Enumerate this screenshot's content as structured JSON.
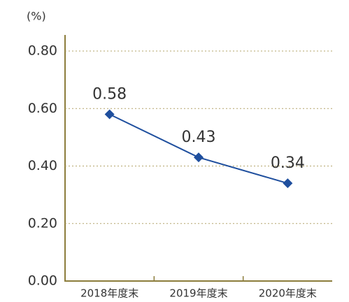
{
  "chart_data": {
    "type": "line",
    "y_label": "(%)",
    "categories": [
      "2018年度末",
      "2019年度末",
      "2020年度末"
    ],
    "series": [
      {
        "name": null,
        "color": "#1f4f9e",
        "values": [
          0.58,
          0.43,
          0.34
        ]
      }
    ],
    "ylim": [
      0,
      0.8
    ],
    "yticks": [
      {
        "value": 0,
        "label": "0.00"
      },
      {
        "value": 0.2,
        "label": "0.20"
      },
      {
        "value": 0.4,
        "label": "0.40"
      },
      {
        "value": 0.6,
        "label": "0.60"
      },
      {
        "value": 0.8,
        "label": "0.80"
      }
    ],
    "grid": true
  }
}
